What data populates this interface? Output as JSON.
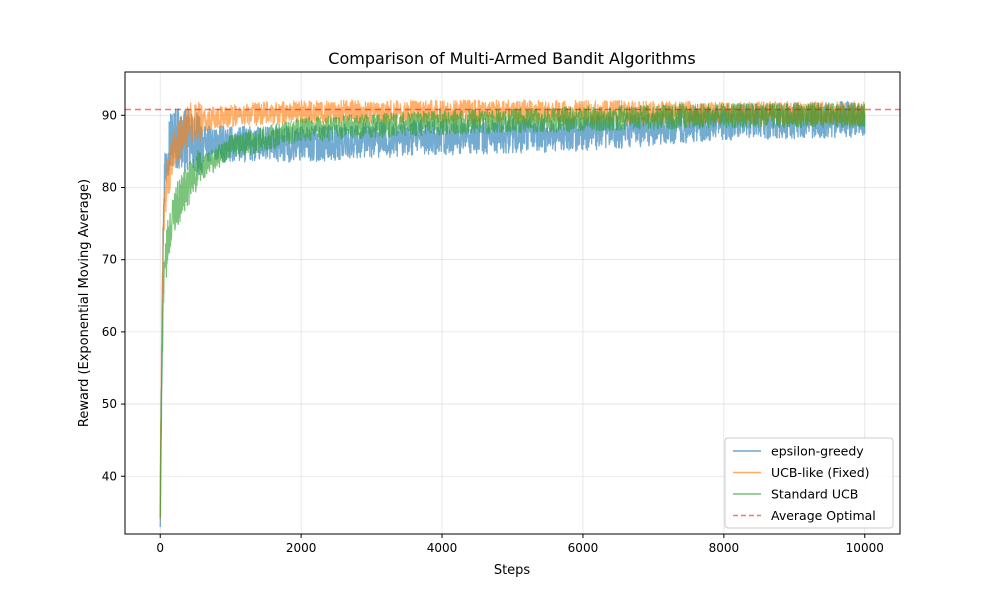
{
  "chart_data": {
    "type": "line",
    "title": "Comparison of Multi-Armed Bandit Algorithms",
    "xlabel": "Steps",
    "ylabel": "Reward (Exponential Moving Average)",
    "xlim": [
      -500,
      10500
    ],
    "ylim": [
      32,
      96
    ],
    "xticks": [
      0,
      2000,
      4000,
      6000,
      8000,
      10000
    ],
    "yticks": [
      40,
      50,
      60,
      70,
      80,
      90
    ],
    "grid": true,
    "legend_position": "lower right",
    "reference_line": {
      "name": "Average Optimal",
      "y": 90.8,
      "color": "#ff0000",
      "style": "dashed"
    },
    "series": [
      {
        "name": "epsilon-greedy",
        "color": "#1f77b4",
        "points": [
          [
            0,
            35
          ],
          [
            20,
            55
          ],
          [
            50,
            80
          ],
          [
            100,
            86
          ],
          [
            200,
            87
          ],
          [
            500,
            86
          ],
          [
            1000,
            86
          ],
          [
            2000,
            86
          ],
          [
            4000,
            87
          ],
          [
            6000,
            87.5
          ],
          [
            8000,
            89
          ],
          [
            10000,
            89.5
          ]
        ],
        "spread": 2.5
      },
      {
        "name": "UCB-like (Fixed)",
        "color": "#ff7f0e",
        "points": [
          [
            0,
            35
          ],
          [
            20,
            60
          ],
          [
            50,
            76
          ],
          [
            100,
            81
          ],
          [
            200,
            85
          ],
          [
            400,
            89
          ],
          [
            1000,
            90
          ],
          [
            2000,
            90.5
          ],
          [
            4000,
            90.5
          ],
          [
            6000,
            90.5
          ],
          [
            8000,
            90.3
          ],
          [
            10000,
            90.3
          ]
        ],
        "spread": 1.6
      },
      {
        "name": "Standard UCB",
        "color": "#2ca02c",
        "points": [
          [
            0,
            35
          ],
          [
            20,
            55
          ],
          [
            50,
            66
          ],
          [
            100,
            72
          ],
          [
            200,
            77
          ],
          [
            500,
            82
          ],
          [
            1000,
            85.5
          ],
          [
            2000,
            88
          ],
          [
            4000,
            89
          ],
          [
            6000,
            89.5
          ],
          [
            8000,
            90
          ],
          [
            10000,
            90
          ]
        ],
        "spread": 1.7
      }
    ]
  }
}
